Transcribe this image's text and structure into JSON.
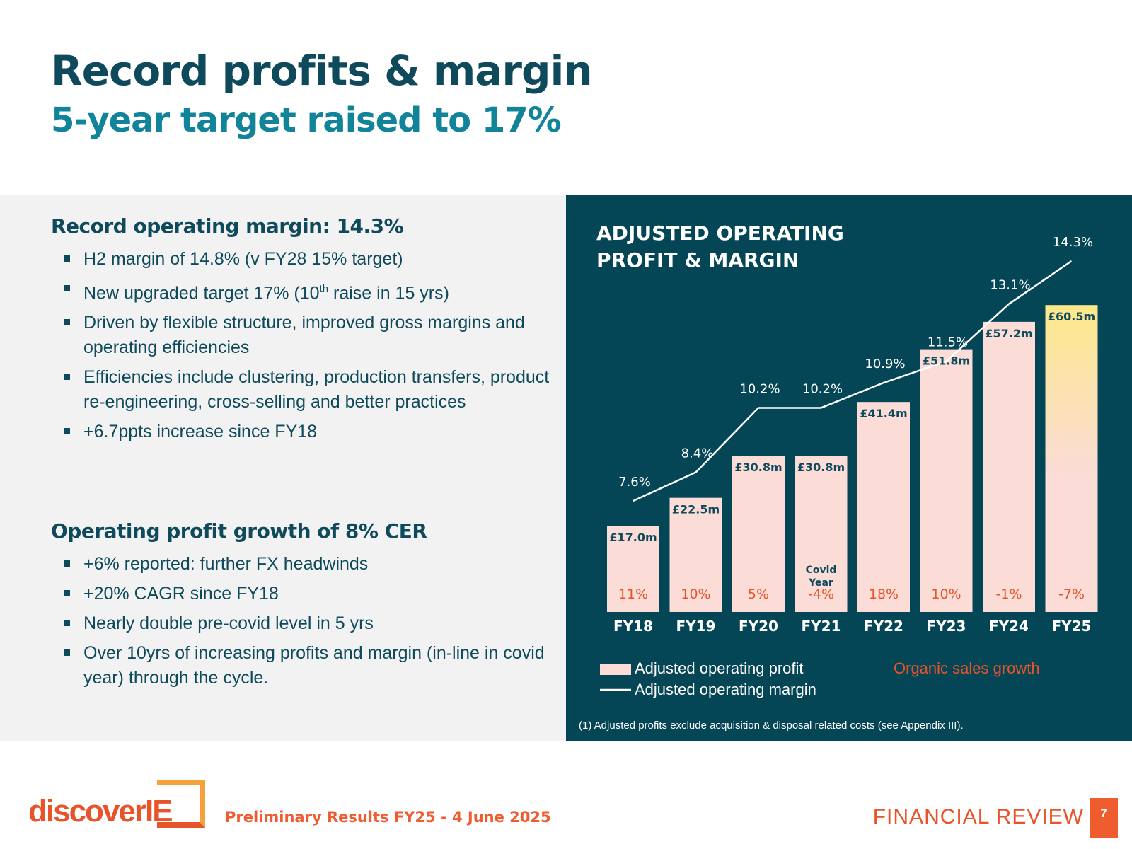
{
  "header": {
    "title": "Record profits & margin",
    "subtitle": "5-year target raised to 17%"
  },
  "left": {
    "section1": {
      "heading": "Record operating margin: 14.3%",
      "bullets": [
        "H2 margin of 14.8% (v FY28 15% target)",
        "Driven by flexible structure, improved gross margins and operating efficiencies",
        "Efficiencies include clustering, production transfers, product re-engineering, cross-selling and better practices",
        "+6.7ppts increase since FY18"
      ],
      "target_bullet": {
        "before": "New upgraded target 17% (10",
        "sup": "th",
        "after": " raise in 15 yrs)"
      }
    },
    "section2": {
      "heading": "Operating profit growth of 8% CER",
      "bullets": [
        "+6% reported: further FX headwinds",
        "+20% CAGR since FY18",
        "Nearly double pre-covid level in 5 yrs",
        "Over 10yrs of increasing profits and margin (in-line in covid year) through the cycle."
      ]
    }
  },
  "chart_data": {
    "type": "bar",
    "title": "ADJUSTED OPERATING PROFIT & MARGIN",
    "title_lines": [
      "ADJUSTED OPERATING",
      "PROFIT & MARGIN"
    ],
    "categories": [
      "FY18",
      "FY19",
      "FY20",
      "FY21",
      "FY22",
      "FY23",
      "FY24",
      "FY25"
    ],
    "series": [
      {
        "name": "Adjusted operating profit",
        "kind": "bar",
        "unit": "£m",
        "values": [
          17.0,
          22.5,
          30.8,
          30.8,
          41.4,
          51.8,
          57.2,
          60.5
        ],
        "labels": [
          "£17.0m",
          "£22.5m",
          "£30.8m",
          "£30.8m",
          "£41.4m",
          "£51.8m",
          "£57.2m",
          "£60.5m"
        ]
      },
      {
        "name": "Adjusted operating margin",
        "kind": "line",
        "unit": "%",
        "values": [
          7.6,
          8.4,
          10.2,
          10.2,
          10.9,
          11.5,
          13.1,
          14.3
        ],
        "labels": [
          "7.6%",
          "8.4%",
          "10.2%",
          "10.2%",
          "10.9%",
          "11.5%",
          "13.1%",
          "14.3%"
        ]
      },
      {
        "name": "Organic sales growth",
        "kind": "annotation",
        "unit": "%",
        "values": [
          11,
          10,
          5,
          -4,
          18,
          10,
          -1,
          -7
        ],
        "labels": [
          "11%",
          "10%",
          "5%",
          "-4%",
          "18%",
          "10%",
          "-1%",
          "-7%"
        ]
      }
    ],
    "annotations": [
      {
        "category": "FY21",
        "text_lines": [
          "Covid",
          "Year"
        ]
      }
    ],
    "bar_ylim": [
      0,
      70
    ],
    "margin_ylim": [
      4,
      16
    ],
    "legend": {
      "bar_label": "Adjusted operating profit",
      "line_label": "Adjusted operating margin",
      "growth_label": "Organic sales growth",
      "placement": "bottom"
    },
    "colors": {
      "panel": "#054656",
      "bar": "#fbdcd6",
      "bar_highlight_top": "#fde88a",
      "bar_label": "#0e4a5c",
      "line": "#ffffff",
      "growth": "#e8542a"
    }
  },
  "footnote": "(1)  Adjusted profits exclude acquisition & disposal related costs (see Appendix III).",
  "footer": {
    "logo_text": "discover",
    "logo_mark": "IE",
    "center": "Preliminary Results FY25 - 4 June 2025",
    "right": "FINANCIAL REVIEW",
    "page_number": "7"
  },
  "colors": {
    "title": "#0e4a5c",
    "subtitle": "#12849a",
    "accent": "#e8542a"
  }
}
